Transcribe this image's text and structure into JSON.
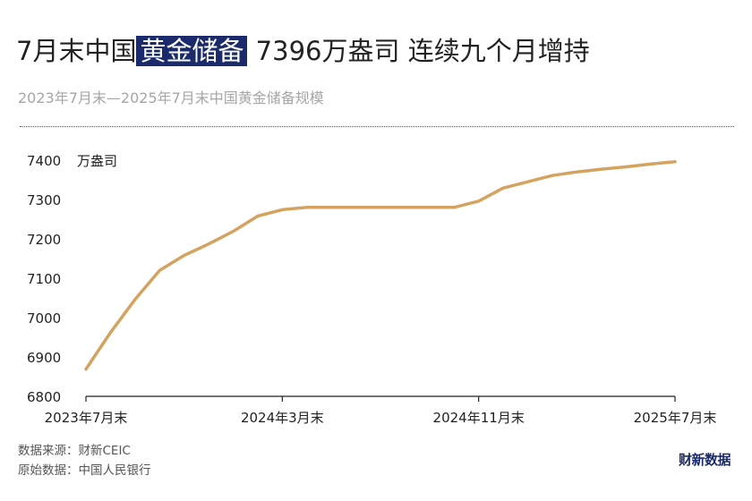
{
  "title": {
    "before": "7月末中国",
    "highlight": "黄金储备",
    "after": " 7396万盎司 连续九个月增持"
  },
  "subtitle": "2023年7月末—2025年7月末中国黄金储备规模",
  "footer": {
    "source": "数据来源：财新CEIC",
    "original": "原始数据：中国人民银行",
    "brand": "财新数据"
  },
  "colors": {
    "line": "#d4a360",
    "axis": "#222222",
    "highlight": "#1a2a6b"
  },
  "chart_data": {
    "type": "line",
    "unit_label": "万盎司",
    "ylim": [
      6800,
      7400
    ],
    "yticks": [
      6800,
      6900,
      7000,
      7100,
      7200,
      7300,
      7400
    ],
    "grid": false,
    "x": [
      "2023-07",
      "2023-08",
      "2023-09",
      "2023-10",
      "2023-11",
      "2023-12",
      "2024-01",
      "2024-02",
      "2024-03",
      "2024-04",
      "2024-05",
      "2024-06",
      "2024-07",
      "2024-08",
      "2024-09",
      "2024-10",
      "2024-11",
      "2024-12",
      "2025-01",
      "2025-02",
      "2025-03",
      "2025-04",
      "2025-05",
      "2025-06",
      "2025-07"
    ],
    "xtick_labels": [
      {
        "at": "2023-07",
        "label": "2023年7月末"
      },
      {
        "at": "2024-03",
        "label": "2024年3月末"
      },
      {
        "at": "2024-11",
        "label": "2024年11月末"
      },
      {
        "at": "2025-07",
        "label": "2025年7月末"
      }
    ],
    "series": [
      {
        "values": [
          6869,
          6962,
          7046,
          7120,
          7158,
          7187,
          7219,
          7258,
          7274,
          7280,
          7280,
          7280,
          7280,
          7280,
          7280,
          7280,
          7296,
          7329,
          7345,
          7361,
          7370,
          7377,
          7383,
          7390,
          7396
        ]
      }
    ]
  }
}
